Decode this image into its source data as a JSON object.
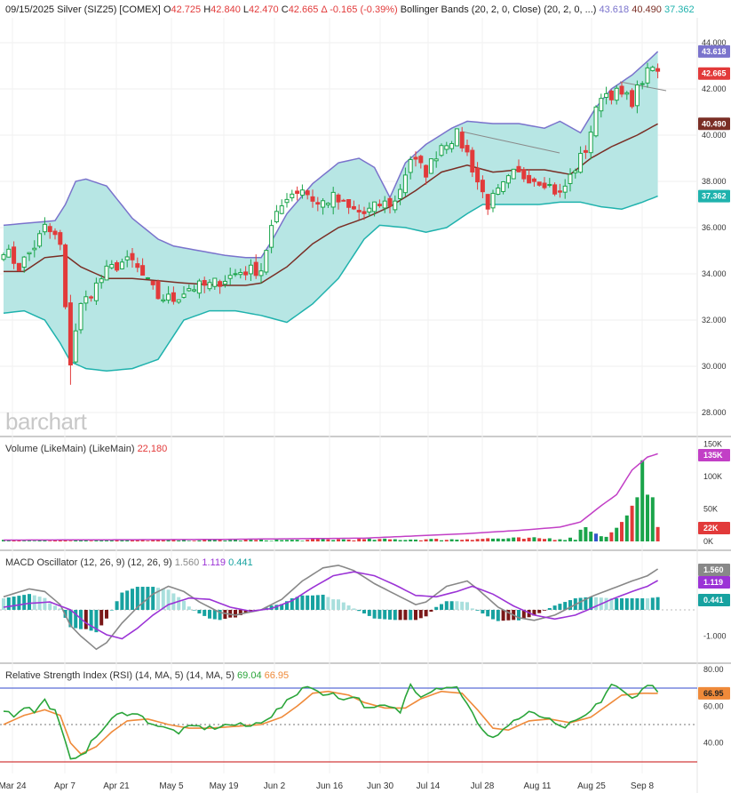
{
  "header": {
    "date": "09/15/2025",
    "symbol": "Silver (SIZ25) [COMEX]",
    "open_label": "O",
    "open": "42.725",
    "high_label": "H",
    "high": "42.840",
    "low_label": "L",
    "low": "42.470",
    "close_label": "C",
    "close": "42.665",
    "change": "Δ -0.165 (-0.39%)",
    "bb_label": "Bollinger Bands (20, 2, 0, Close)",
    "bb_params": "(20, 2, 0, ...)",
    "bb_upper": "43.618",
    "bb_mid": "40.490",
    "bb_lower": "37.362"
  },
  "logo": "barchart",
  "colors": {
    "up": "#1aa44a",
    "down": "#e23a3a",
    "band_fill": "#b7e6e4",
    "band_upper": "#7a73cc",
    "band_lower": "#1fb2ad",
    "band_mid": "#7a2e25",
    "vol_ma": "#c23fc6",
    "macd": "#888888",
    "signal": "#9b33d6",
    "hist_pos": "#17a2a0",
    "hist_pos_light": "#a9dfdd",
    "hist_neg": "#7a1818",
    "rsi": "#2aa53a",
    "rsi_ma": "#ef8a3a",
    "rsi_hi": "#5b6ed6",
    "rsi_lo": "#d23c3c"
  },
  "price_axis": {
    "ticks": [
      "44.000",
      "42.000",
      "40.000",
      "38.000",
      "36.000",
      "34.000",
      "32.000",
      "30.000",
      "28.000"
    ]
  },
  "price_badges": {
    "upper": "43.618",
    "last": "42.665",
    "mid": "40.490",
    "lower": "37.362"
  },
  "volume": {
    "title": "Volume (LikeMain)  (LikeMain)",
    "value": "22,180",
    "ticks": [
      "150K",
      "100K",
      "50K",
      "0K"
    ],
    "badge_ma": "135K",
    "badge_vol": "22K"
  },
  "macd": {
    "title": "MACD Oscillator (12, 26, 9)  (12, 26, 9)",
    "v1": "1.560",
    "v2": "1.119",
    "v3": "0.441",
    "ticks": [
      "1.000",
      "-1.000"
    ],
    "badge1": "1.560",
    "badge2": "1.119",
    "badge3": "0.441"
  },
  "rsi": {
    "title": "Relative Strength Index (RSI) (14, MA, 5)  (14, MA, 5)",
    "v1": "69.04",
    "v2": "66.95",
    "ticks": [
      "80.00",
      "60.00",
      "40.00"
    ],
    "badge": "66.95"
  },
  "x_axis": {
    "labels": [
      "Mar 24",
      "Apr 7",
      "Apr 21",
      "May 5",
      "May 19",
      "Jun 2",
      "Jun 16",
      "Jun 30",
      "Jul 14",
      "Jul 28",
      "Aug 11",
      "Aug 25",
      "Sep 8"
    ]
  },
  "chart_data": {
    "type": "candlestick",
    "title": "Silver (SIZ25) [COMEX]",
    "bars": 128,
    "price_range": [
      28,
      44
    ],
    "key_points": {
      "start_close": 35.1,
      "apr7_low": 29.2,
      "jul14_high": 39.9,
      "jul28_high": 40.1,
      "aug1_low": 36.9,
      "last_close": 42.665
    },
    "indicators": {
      "bollinger_upper_last": 43.618,
      "bollinger_mid_last": 40.49,
      "bollinger_lower_last": 37.362,
      "volume_last": 22180,
      "volume_ma_last": 135000,
      "macd_last": 1.56,
      "macd_signal_last": 1.119,
      "macd_hist_last": 0.441,
      "rsi_last": 69.04,
      "rsi_ma_last": 66.95,
      "rsi_levels": [
        70,
        50,
        30
      ]
    }
  }
}
